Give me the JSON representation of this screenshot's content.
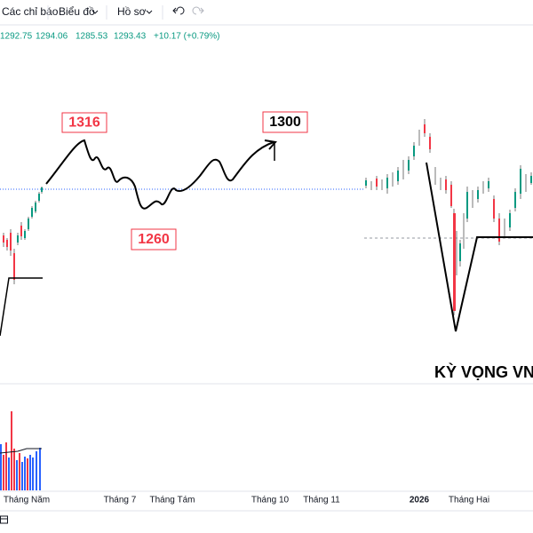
{
  "toolbar": {
    "items": [
      "Các chỉ báo",
      "Biểu đồ",
      "Hồ sơ"
    ]
  },
  "legend": {
    "values": [
      "1292.75",
      "1294.06",
      "1285.53",
      "1293.43",
      "+10.17 (+0.79%)"
    ]
  },
  "annotations": {
    "labels": [
      "1316",
      "1300",
      "1260"
    ],
    "caption": "KỲ VỌNG VN"
  },
  "time_axis": {
    "labels": [
      "Tháng Năm",
      "Tháng 7",
      "Tháng Tám",
      "Tháng 10",
      "Tháng 11",
      "2026",
      "Tháng Hai"
    ]
  }
}
